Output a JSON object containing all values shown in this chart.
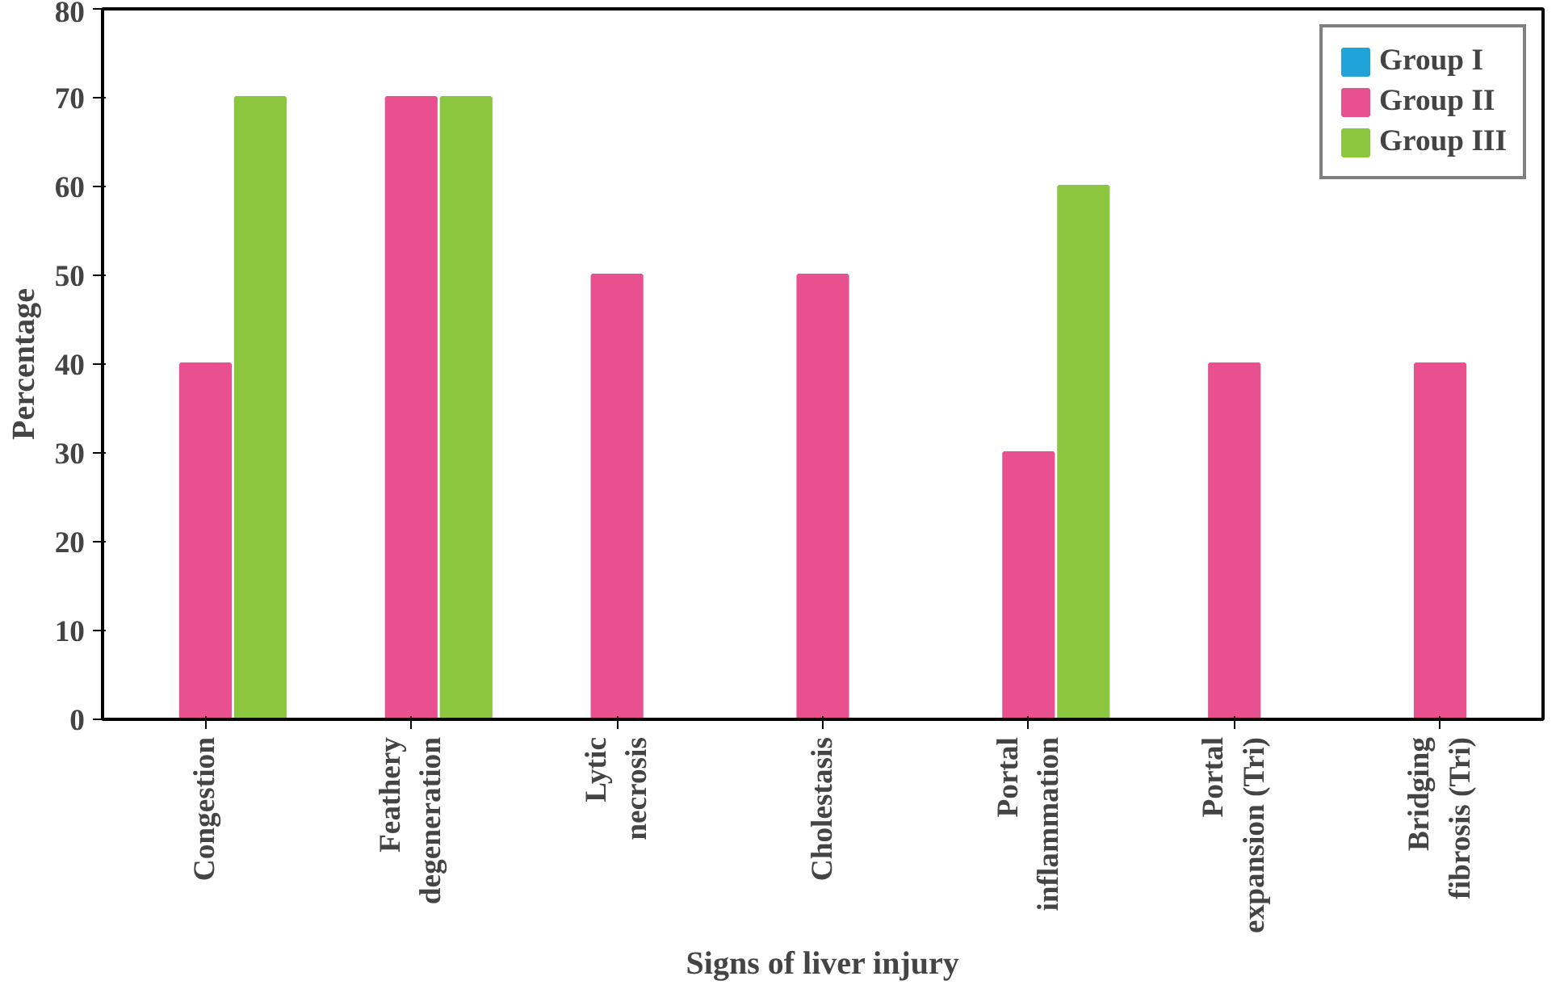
{
  "chart_data": {
    "type": "bar",
    "xlabel": "Signs of liver injury",
    "ylabel": "Percentage",
    "categories": [
      "Congestion",
      "Feathery degeneration",
      "Lytic necrosis",
      "Cholestasis",
      "Portal inflammation",
      "Portal expansion (Tri)",
      "Bridging fibrosis (Tri)"
    ],
    "series": [
      {
        "name": "Group I",
        "color": "#1fa3d8",
        "values": [
          0,
          0,
          0,
          0,
          0,
          0,
          0
        ]
      },
      {
        "name": "Group II",
        "color": "#e8508f",
        "values": [
          40,
          70,
          50,
          50,
          30,
          40,
          40
        ]
      },
      {
        "name": "Group III",
        "color": "#8cc63f",
        "values": [
          70,
          70,
          0,
          0,
          60,
          0,
          0
        ]
      }
    ],
    "ylim": [
      0,
      80
    ],
    "yticks": [
      0,
      10,
      20,
      30,
      40,
      50,
      60,
      70,
      80
    ],
    "grid": false,
    "legend": "top right"
  }
}
